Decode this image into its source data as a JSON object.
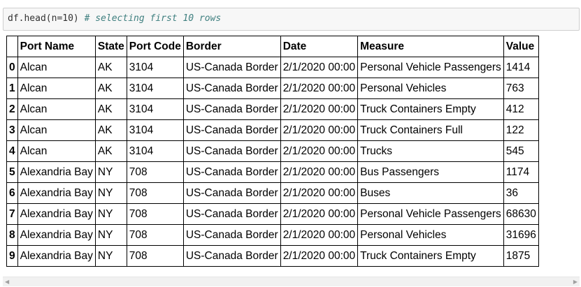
{
  "code_cell": {
    "code": "df.head(n=10) ",
    "comment": "# selecting first 10 rows"
  },
  "table": {
    "columns": [
      "",
      "Port Name",
      "State",
      "Port Code",
      "Border",
      "Date",
      "Measure",
      "Value"
    ],
    "rows": [
      [
        "0",
        "Alcan",
        "AK",
        "3104",
        "US-Canada Border",
        "2/1/2020 00:00",
        "Personal Vehicle Passengers",
        "1414"
      ],
      [
        "1",
        "Alcan",
        "AK",
        "3104",
        "US-Canada Border",
        "2/1/2020 00:00",
        "Personal Vehicles",
        "763"
      ],
      [
        "2",
        "Alcan",
        "AK",
        "3104",
        "US-Canada Border",
        "2/1/2020 00:00",
        "Truck Containers Empty",
        "412"
      ],
      [
        "3",
        "Alcan",
        "AK",
        "3104",
        "US-Canada Border",
        "2/1/2020 00:00",
        "Truck Containers Full",
        "122"
      ],
      [
        "4",
        "Alcan",
        "AK",
        "3104",
        "US-Canada Border",
        "2/1/2020 00:00",
        "Trucks",
        "545"
      ],
      [
        "5",
        "Alexandria Bay",
        "NY",
        "708",
        "US-Canada Border",
        "2/1/2020 00:00",
        "Bus Passengers",
        "1174"
      ],
      [
        "6",
        "Alexandria Bay",
        "NY",
        "708",
        "US-Canada Border",
        "2/1/2020 00:00",
        "Buses",
        "36"
      ],
      [
        "7",
        "Alexandria Bay",
        "NY",
        "708",
        "US-Canada Border",
        "2/1/2020 00:00",
        "Personal Vehicle Passengers",
        "68630"
      ],
      [
        "8",
        "Alexandria Bay",
        "NY",
        "708",
        "US-Canada Border",
        "2/1/2020 00:00",
        "Personal Vehicles",
        "31696"
      ],
      [
        "9",
        "Alexandria Bay",
        "NY",
        "708",
        "US-Canada Border",
        "2/1/2020 00:00",
        "Truck Containers Empty",
        "1875"
      ]
    ]
  },
  "scrollbar": {
    "left_icon": "scroll-left-arrow-icon",
    "right_icon": "scroll-right-arrow-icon"
  }
}
